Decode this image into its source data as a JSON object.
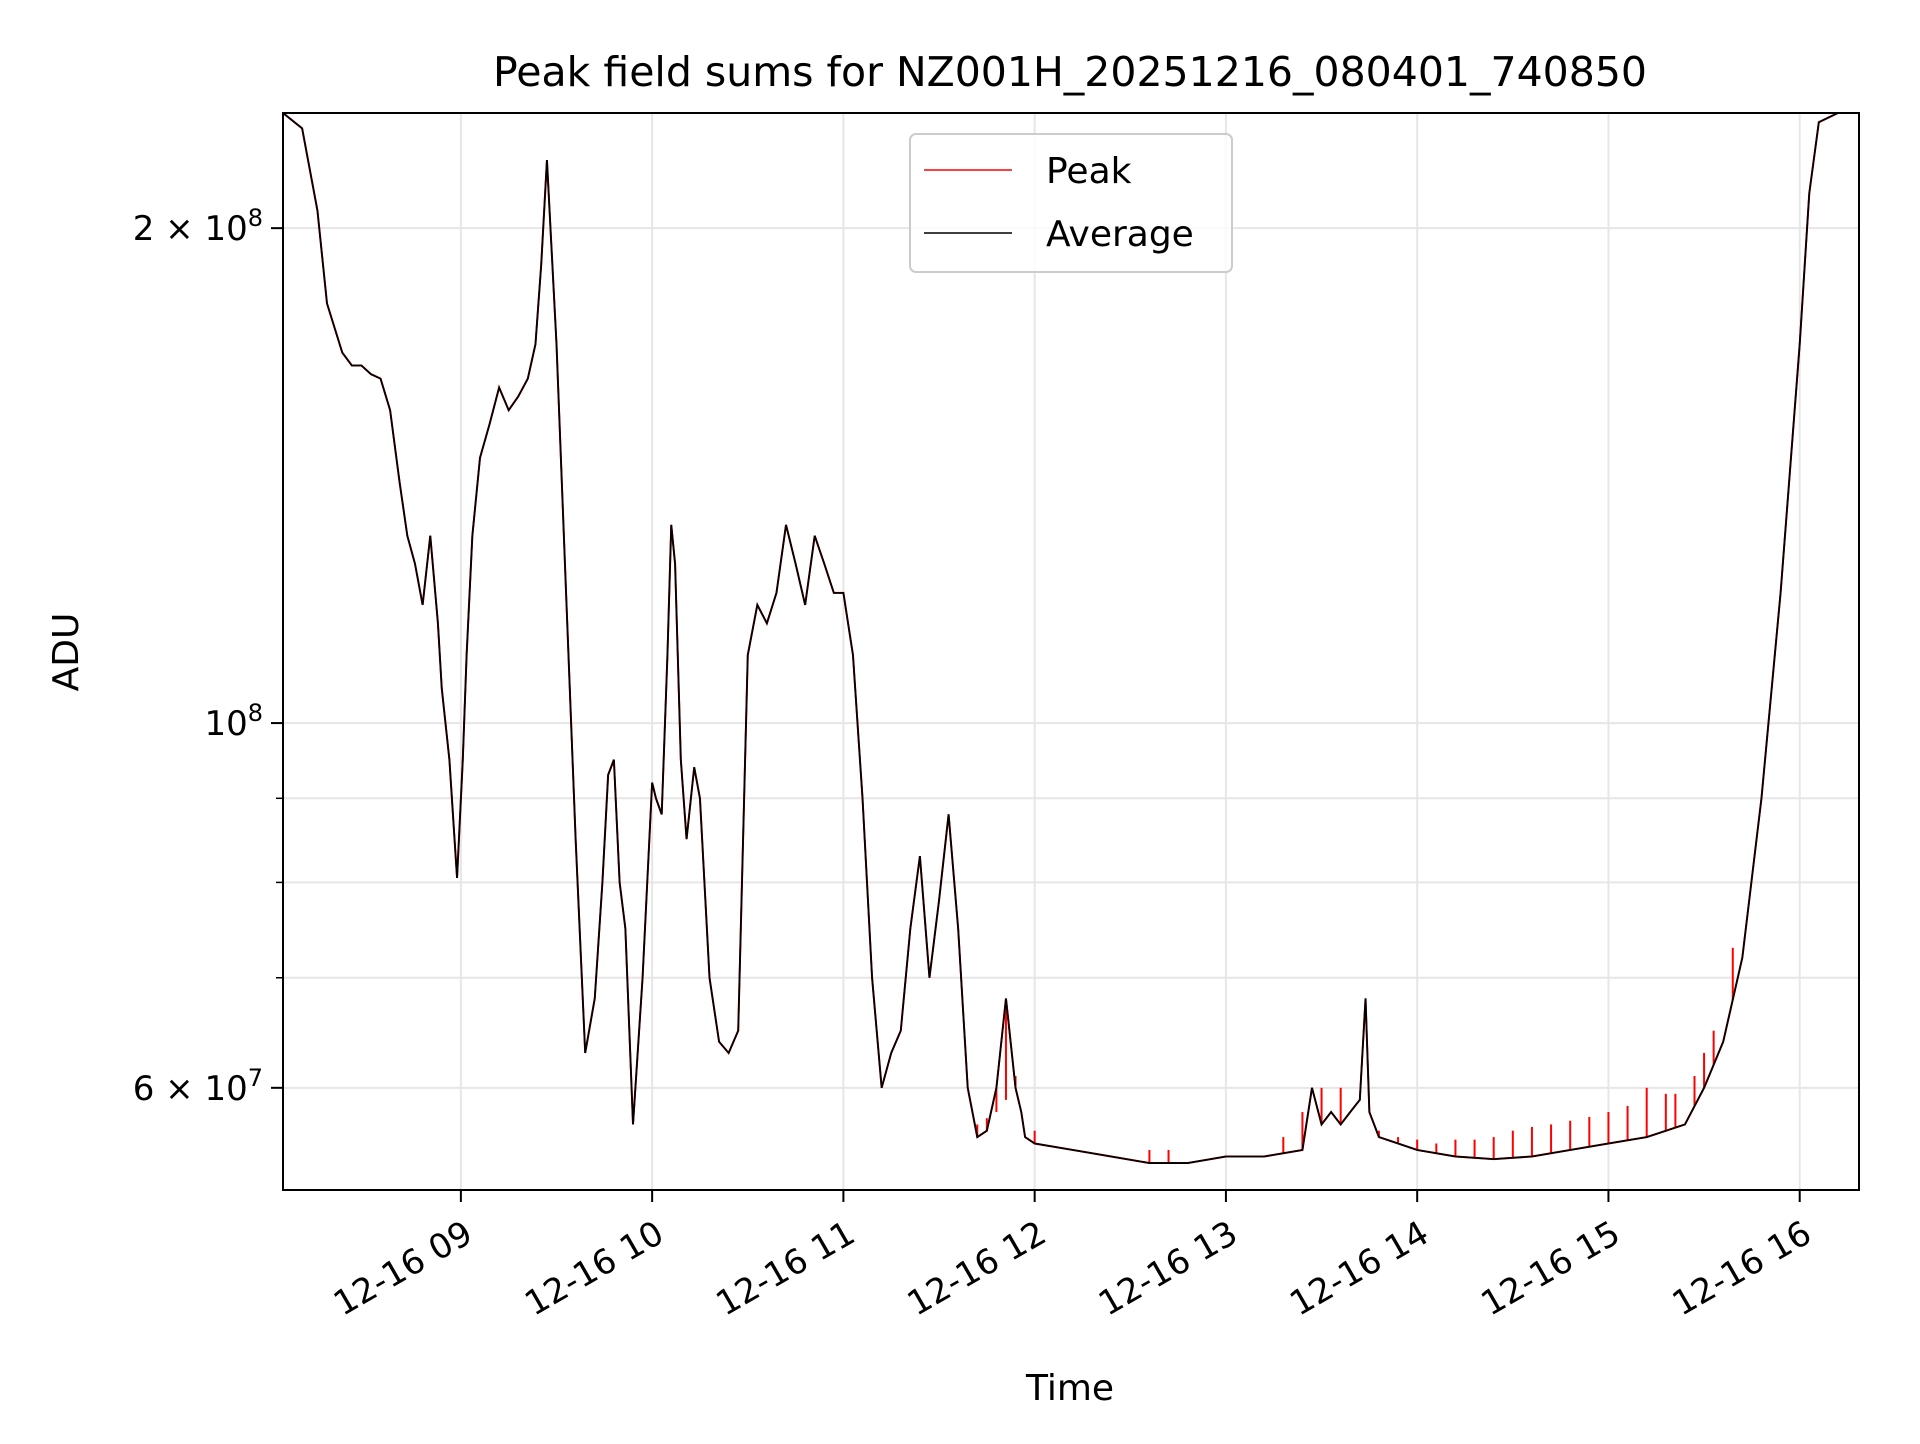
{
  "chart_data": {
    "type": "line",
    "title": "Peak field sums for NZ001H_20251216_080401_740850",
    "xlabel": "Time",
    "ylabel": "ADU",
    "yscale": "log",
    "ylim": [
      52000000,
      235000000
    ],
    "xlim_hours": [
      8.07,
      16.31
    ],
    "x_ticks": [
      {
        "hour": 9,
        "label": "12-16 09"
      },
      {
        "hour": 10,
        "label": "12-16 10"
      },
      {
        "hour": 11,
        "label": "12-16 11"
      },
      {
        "hour": 12,
        "label": "12-16 12"
      },
      {
        "hour": 13,
        "label": "12-16 13"
      },
      {
        "hour": 14,
        "label": "12-16 14"
      },
      {
        "hour": 15,
        "label": "12-16 15"
      },
      {
        "hour": 16,
        "label": "12-16 16"
      }
    ],
    "y_major_ticks": [
      {
        "value": 60000000,
        "base": "6 × 10",
        "exp": "7"
      },
      {
        "value": 100000000,
        "base": "10",
        "exp": "8"
      },
      {
        "value": 200000000,
        "base": "2 × 10",
        "exp": "8"
      }
    ],
    "y_minor_ticks": [
      70000000,
      80000000,
      90000000
    ],
    "grid": true,
    "legend": {
      "placement": "top-center",
      "entries": [
        {
          "label": "Peak",
          "color": "#ff0000"
        },
        {
          "label": "Average",
          "color": "#000000"
        }
      ]
    },
    "series": [
      {
        "name": "Average",
        "color": "#000000",
        "x_hours": [
          8.07,
          8.17,
          8.25,
          8.3,
          8.38,
          8.43,
          8.48,
          8.53,
          8.58,
          8.63,
          8.68,
          8.72,
          8.76,
          8.8,
          8.84,
          8.88,
          8.9,
          8.94,
          8.98,
          9.01,
          9.03,
          9.06,
          9.1,
          9.15,
          9.2,
          9.25,
          9.3,
          9.35,
          9.39,
          9.42,
          9.45,
          9.5,
          9.55,
          9.6,
          9.65,
          9.7,
          9.74,
          9.77,
          9.8,
          9.83,
          9.86,
          9.9,
          9.95,
          10.0,
          10.02,
          10.05,
          10.08,
          10.1,
          10.12,
          10.15,
          10.18,
          10.22,
          10.25,
          10.3,
          10.35,
          10.4,
          10.45,
          10.5,
          10.55,
          10.6,
          10.65,
          10.7,
          10.75,
          10.8,
          10.85,
          10.9,
          10.95,
          11.0,
          11.05,
          11.1,
          11.15,
          11.2,
          11.25,
          11.3,
          11.35,
          11.4,
          11.45,
          11.5,
          11.55,
          11.6,
          11.65,
          11.7,
          11.75,
          11.8,
          11.85,
          11.9,
          11.93,
          11.95,
          12.0,
          12.2,
          12.4,
          12.6,
          12.8,
          13.0,
          13.2,
          13.4,
          13.45,
          13.5,
          13.55,
          13.6,
          13.65,
          13.7,
          13.73,
          13.75,
          13.8,
          13.9,
          14.0,
          14.2,
          14.4,
          14.6,
          14.8,
          15.0,
          15.2,
          15.4,
          15.5,
          15.6,
          15.7,
          15.8,
          15.9,
          16.0,
          16.05,
          16.1,
          16.2,
          16.31
        ],
        "values": [
          235000000,
          230000000,
          205000000,
          180000000,
          168000000,
          165000000,
          165000000,
          163000000,
          162000000,
          155000000,
          140000000,
          130000000,
          125000000,
          118000000,
          130000000,
          115000000,
          105000000,
          95000000,
          80500000,
          95000000,
          110000000,
          130000000,
          145000000,
          152000000,
          160000000,
          155000000,
          158000000,
          162000000,
          170000000,
          190000000,
          220000000,
          170000000,
          120000000,
          85000000,
          63000000,
          68000000,
          80000000,
          93000000,
          95000000,
          80000000,
          75000000,
          57000000,
          70000000,
          92000000,
          90000000,
          88000000,
          110000000,
          132000000,
          125000000,
          95000000,
          85000000,
          94000000,
          90000000,
          70000000,
          64000000,
          63000000,
          65000000,
          110000000,
          118000000,
          115000000,
          120000000,
          132000000,
          125000000,
          118000000,
          130000000,
          125000000,
          120000000,
          120000000,
          110000000,
          90000000,
          70000000,
          60000000,
          63000000,
          65000000,
          75000000,
          83000000,
          70000000,
          78000000,
          88000000,
          75000000,
          60000000,
          56000000,
          56500000,
          60000000,
          68000000,
          60000000,
          58000000,
          56000000,
          55500000,
          55000000,
          54500000,
          54000000,
          54000000,
          54500000,
          54500000,
          55000000,
          60000000,
          57000000,
          58000000,
          57000000,
          58000000,
          59000000,
          68000000,
          58000000,
          56000000,
          55500000,
          55000000,
          54500000,
          54300000,
          54500000,
          55000000,
          55500000,
          56000000,
          57000000,
          60000000,
          64000000,
          72000000,
          90000000,
          120000000,
          170000000,
          210000000,
          232000000,
          235000000,
          235000000
        ]
      },
      {
        "name": "Peak",
        "color": "#ff0000",
        "x_hours": [
          11.7,
          11.75,
          11.8,
          11.85,
          11.9,
          12.0,
          12.6,
          12.7,
          13.3,
          13.4,
          13.5,
          13.6,
          13.8,
          13.9,
          14.0,
          14.1,
          14.2,
          14.3,
          14.4,
          14.5,
          14.6,
          14.7,
          14.8,
          14.9,
          15.0,
          15.1,
          15.2,
          15.3,
          15.35,
          15.45,
          15.5,
          15.55,
          15.65
        ],
        "values": [
          57000000,
          57500000,
          58000000,
          59000000,
          61000000,
          56500000,
          55000000,
          55000000,
          56000000,
          58000000,
          60000000,
          60000000,
          56500000,
          56000000,
          55800000,
          55500000,
          55800000,
          55800000,
          56000000,
          56500000,
          56800000,
          57000000,
          57300000,
          57600000,
          58000000,
          58500000,
          60000000,
          59500000,
          59500000,
          61000000,
          63000000,
          65000000,
          73000000
        ]
      }
    ]
  }
}
